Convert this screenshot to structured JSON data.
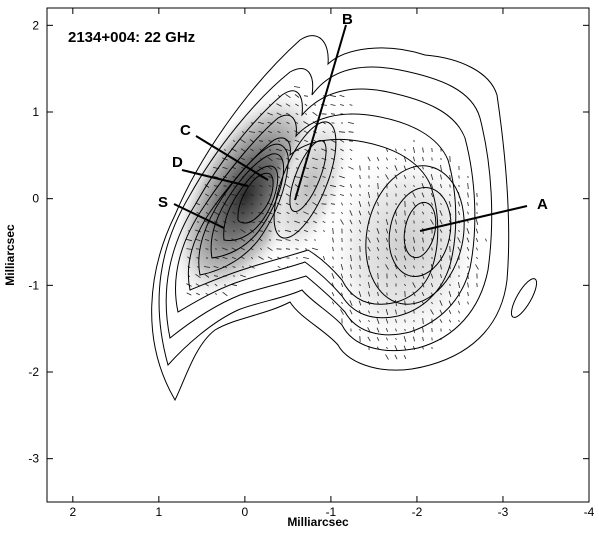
{
  "title": "2134+004: 22 GHz",
  "chart_data": {
    "type": "contour",
    "title": "2134+004: 22 GHz",
    "xlabel": "Milliarcsec",
    "ylabel": "Milliarcsec",
    "xlim": [
      2.3,
      -4.0
    ],
    "ylim": [
      -3.5,
      2.2
    ],
    "x_ticks": [
      "2",
      "1",
      "0",
      "-1",
      "-2",
      "-3",
      "-4"
    ],
    "y_ticks": [
      "2",
      "1",
      "0",
      "-1",
      "-2",
      "-3"
    ],
    "x_tick_values": [
      2,
      1,
      0,
      -1,
      -2,
      -3,
      -4
    ],
    "y_tick_values": [
      2,
      1,
      0,
      -1,
      -2,
      -3
    ],
    "components": [
      {
        "label": "A",
        "x": -2.0,
        "y": -0.45
      },
      {
        "label": "B",
        "x": -0.55,
        "y": -0.1
      },
      {
        "label": "C",
        "x": -0.25,
        "y": 0.15
      },
      {
        "label": "D",
        "x": 0.0,
        "y": 0.05
      },
      {
        "label": "S",
        "x": 0.3,
        "y": -0.4
      }
    ]
  }
}
